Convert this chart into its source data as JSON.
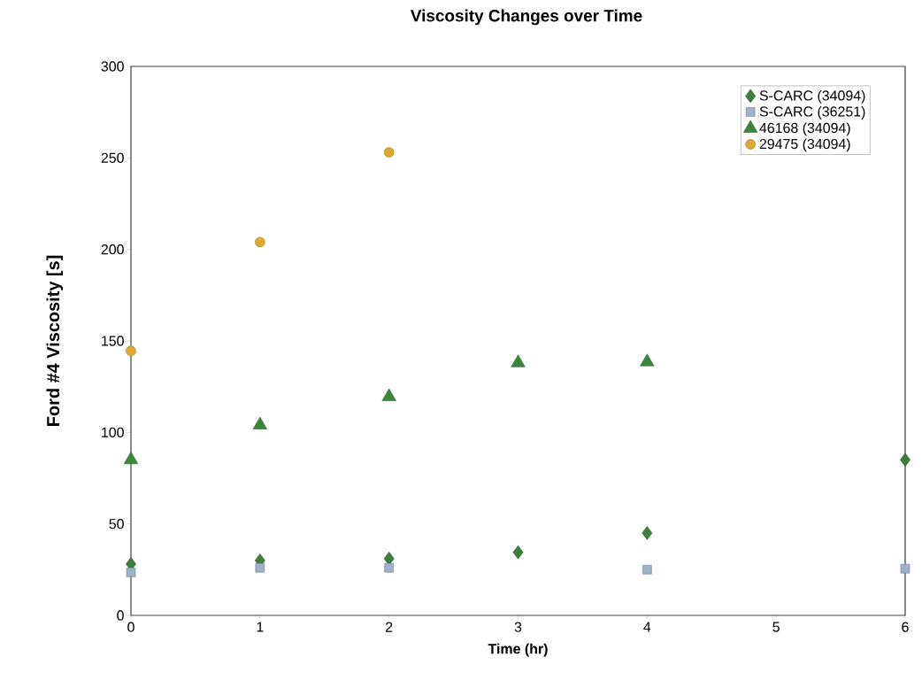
{
  "chart_data": {
    "type": "scatter",
    "title": "Viscosity Changes over Time",
    "xlabel": "Time (hr)",
    "ylabel": "Ford #4 Viscosity [s]",
    "xlim": [
      0,
      6
    ],
    "xticks": [
      0,
      1,
      2,
      3,
      4,
      5,
      6
    ],
    "ylim": [
      0,
      300
    ],
    "yticks": [
      0,
      50,
      100,
      150,
      200,
      250,
      300
    ],
    "grid": false,
    "legend": "top right",
    "series": [
      {
        "name": "S-CARC (34094)",
        "color": "#3d7d3d",
        "marker": "diamond",
        "x": [
          0,
          1,
          2,
          3,
          4,
          6
        ],
        "values": [
          28,
          30,
          31,
          34.5,
          45,
          85
        ]
      },
      {
        "name": "S-CARC (36251)",
        "color": "#9db1c9",
        "marker": "square",
        "x": [
          0,
          1,
          2,
          4,
          6
        ],
        "values": [
          23.5,
          26,
          26,
          25,
          25.5
        ]
      },
      {
        "name": "46168 (34094)",
        "color": "#3a873a",
        "marker": "triangle",
        "x": [
          0,
          1,
          2,
          3,
          4
        ],
        "values": [
          85,
          104,
          119.5,
          138,
          138.5
        ]
      },
      {
        "name": "29475 (34094)",
        "color": "#dea935",
        "marker": "circle",
        "x": [
          0,
          1,
          2
        ],
        "values": [
          144.5,
          204,
          253
        ]
      }
    ]
  }
}
